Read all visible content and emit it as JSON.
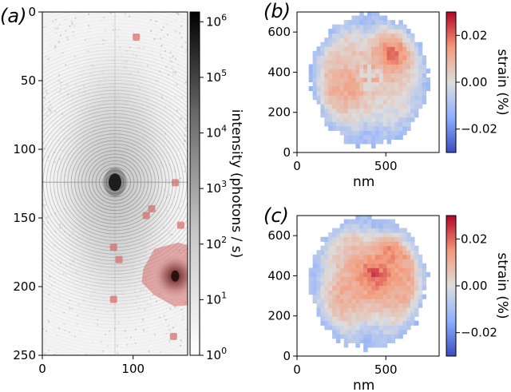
{
  "chart_data": [
    {
      "panel": "(a)",
      "type": "heatmap",
      "title": "",
      "xlabel": "",
      "ylabel": "",
      "x_ticks": [
        0,
        100
      ],
      "y_ticks": [
        0,
        50,
        100,
        150,
        200,
        250
      ],
      "xlim": [
        0,
        160
      ],
      "ylim": [
        250,
        0
      ],
      "log_scale": true,
      "colormap": "Greys",
      "colorbar": {
        "label": "intensity  (photons / s)",
        "ticks": [
          "10^0",
          "10^1",
          "10^2",
          "10^3",
          "10^4",
          "10^5",
          "10^6"
        ],
        "range": [
          1,
          1500000
        ]
      },
      "peaks": [
        {
          "x": 80,
          "y": 124,
          "intensity": 1000000
        },
        {
          "x": 141,
          "y": 193,
          "intensity": 300000
        }
      ],
      "masked_pixels_color": "#d46a6a",
      "masked_regions": [
        {
          "x": 103,
          "y": 18
        },
        {
          "x": 141,
          "y": 190
        },
        {
          "x": 120,
          "y": 143
        },
        {
          "x": 114,
          "y": 148
        },
        {
          "x": 146,
          "y": 124
        },
        {
          "x": 152,
          "y": 155
        },
        {
          "x": 78,
          "y": 171
        },
        {
          "x": 84,
          "y": 180
        },
        {
          "x": 78,
          "y": 209
        },
        {
          "x": 144,
          "y": 236
        }
      ]
    },
    {
      "panel": "(b)",
      "type": "heatmap",
      "title": "",
      "xlabel": "nm",
      "ylabel": "",
      "x_ticks": [
        0,
        500
      ],
      "y_ticks": [
        0,
        200,
        400,
        600
      ],
      "xlim": [
        0,
        800
      ],
      "ylim": [
        0,
        700
      ],
      "colormap": "coolwarm",
      "colorbar": {
        "label": "strain (%)",
        "ticks": [
          "0.02",
          "0.00",
          "−0.02"
        ],
        "range": [
          -0.03,
          0.03
        ]
      },
      "disk": {
        "center_x": 400,
        "center_y": 355,
        "radius": 330
      },
      "strain_features": [
        {
          "x": 520,
          "y": 480,
          "strain": 0.024,
          "note": "high tensile region upper right"
        },
        {
          "x": 300,
          "y": 320,
          "strain": 0.016
        },
        {
          "x": 400,
          "y": 360,
          "strain": 0.0,
          "note": "noisy center"
        },
        {
          "x": 400,
          "y": 60,
          "strain": -0.012,
          "note": "compressive rim bottom"
        },
        {
          "x": 720,
          "y": 300,
          "strain": -0.008
        },
        {
          "x": 400,
          "y": 670,
          "strain": -0.015,
          "note": "compressive rim top"
        }
      ]
    },
    {
      "panel": "(c)",
      "type": "heatmap",
      "title": "",
      "xlabel": "nm",
      "ylabel": "",
      "x_ticks": [
        0,
        500
      ],
      "y_ticks": [
        0,
        200,
        400,
        600
      ],
      "xlim": [
        0,
        800
      ],
      "ylim": [
        0,
        700
      ],
      "colormap": "coolwarm",
      "colorbar": {
        "label": "strain (%)",
        "ticks": [
          "0.02",
          "0.00",
          "−0.02"
        ],
        "range": [
          -0.03,
          0.03
        ]
      },
      "disk": {
        "center_x": 390,
        "center_y": 360,
        "radius": 330
      },
      "strain_features": [
        {
          "x": 420,
          "y": 400,
          "strain": 0.025,
          "note": "peak near center"
        },
        {
          "x": 520,
          "y": 520,
          "strain": 0.018
        },
        {
          "x": 250,
          "y": 300,
          "strain": 0.012
        },
        {
          "x": 400,
          "y": 70,
          "strain": -0.012,
          "note": "compressive rim bottom"
        },
        {
          "x": 450,
          "y": 670,
          "strain": -0.018,
          "note": "compressive rim top"
        },
        {
          "x": 90,
          "y": 380,
          "strain": -0.008
        }
      ]
    }
  ]
}
